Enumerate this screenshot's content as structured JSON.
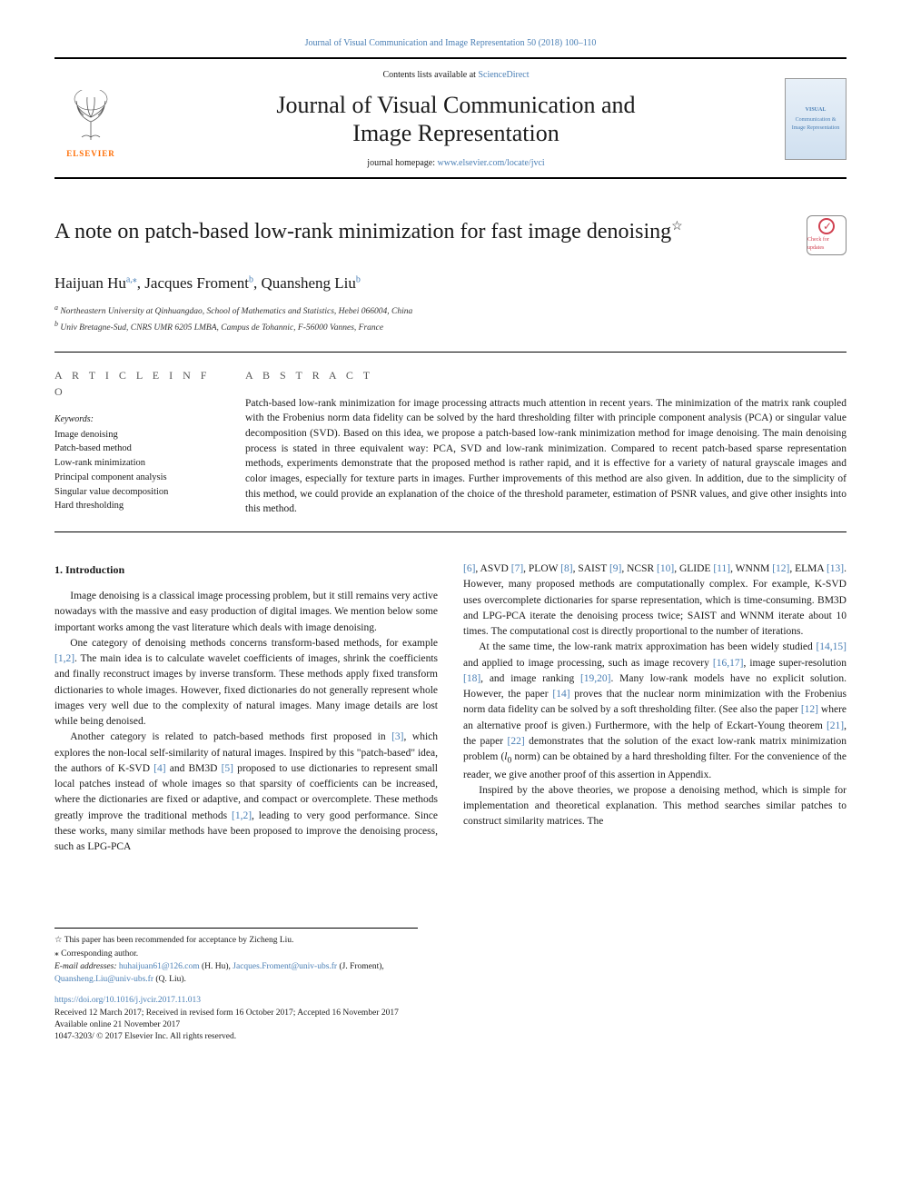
{
  "header": {
    "citation": "Journal of Visual Communication and Image Representation 50 (2018) 100–110",
    "contents_prefix": "Contents lists available at ",
    "contents_link": "ScienceDirect",
    "journal_name_1": "Journal of Visual Communication and",
    "journal_name_2": "Image Representation",
    "homepage_prefix": "journal homepage: ",
    "homepage_link": "www.elsevier.com/locate/jvci",
    "elsevier_label": "ELSEVIER",
    "cover_title": "VISUAL",
    "cover_sub": "Communication & Image Representation",
    "updates_label": "Check for updates"
  },
  "paper": {
    "title": "A note on patch-based low-rank minimization for fast image denoising",
    "title_mark": "☆",
    "authors_html": "Haijuan Hu|a,*|, Jacques Froment|b|, Quansheng Liu|b|",
    "authors": [
      {
        "name": "Haijuan Hu",
        "sup": "a,",
        "mark": "⁎"
      },
      {
        "name": "Jacques Froment",
        "sup": "b"
      },
      {
        "name": "Quansheng Liu",
        "sup": "b"
      }
    ],
    "affiliations": [
      {
        "sup": "a",
        "text": "Northeastern University at Qinhuangdao, School of Mathematics and Statistics, Hebei 066004, China"
      },
      {
        "sup": "b",
        "text": "Univ Bretagne-Sud, CNRS UMR 6205 LMBA, Campus de Tohannic, F-56000 Vannes, France"
      }
    ]
  },
  "info": {
    "header": "A R T I C L E   I N F O",
    "keywords_label": "Keywords:",
    "keywords": [
      "Image denoising",
      "Patch-based method",
      "Low-rank minimization",
      "Principal component analysis",
      "Singular value decomposition",
      "Hard thresholding"
    ]
  },
  "abstract": {
    "header": "A B S T R A C T",
    "text": "Patch-based low-rank minimization for image processing attracts much attention in recent years. The minimization of the matrix rank coupled with the Frobenius norm data fidelity can be solved by the hard thresholding filter with principle component analysis (PCA) or singular value decomposition (SVD). Based on this idea, we propose a patch-based low-rank minimization method for image denoising. The main denoising process is stated in three equivalent way: PCA, SVD and low-rank minimization. Compared to recent patch-based sparse representation methods, experiments demonstrate that the proposed method is rather rapid, and it is effective for a variety of natural grayscale images and color images, especially for texture parts in images. Further improvements of this method are also given. In addition, due to the simplicity of this method, we could provide an explanation of the choice of the threshold parameter, estimation of PSNR values, and give other insights into this method."
  },
  "body": {
    "section_number": "1.",
    "section_title": "Introduction",
    "left_paragraphs": [
      "Image denoising is a classical image processing problem, but it still remains very active nowadays with the massive and easy production of digital images. We mention below some important works among the vast literature which deals with image denoising.",
      "One category of denoising methods concerns transform-based methods, for example <span class='ref'>[1,2]</span>. The main idea is to calculate wavelet coefficients of images, shrink the coefficients and finally reconstruct images by inverse transform. These methods apply fixed transform dictionaries to whole images. However, fixed dictionaries do not generally represent whole images very well due to the complexity of natural images. Many image details are lost while being denoised.",
      "Another category is related to patch-based methods first proposed in <span class='ref'>[3]</span>, which explores the non-local self-similarity of natural images. Inspired by this \"patch-based\" idea, the authors of K-SVD <span class='ref'>[4]</span> and BM3D <span class='ref'>[5]</span> proposed to use dictionaries to represent small local patches instead of whole images so that sparsity of coefficients can be increased, where the dictionaries are fixed or adaptive, and compact or overcomplete. These methods greatly improve the traditional methods <span class='ref'>[1,2]</span>, leading to very good performance. Since these works, many similar methods have been proposed to improve the denoising process, such as LPG-PCA"
    ],
    "right_paragraphs": [
      "<span class='ref'>[6]</span>, ASVD <span class='ref'>[7]</span>, PLOW <span class='ref'>[8]</span>, SAIST <span class='ref'>[9]</span>, NCSR <span class='ref'>[10]</span>, GLIDE <span class='ref'>[11]</span>, WNNM <span class='ref'>[12]</span>, ELMA <span class='ref'>[13]</span>. However, many proposed methods are computationally complex. For example, K-SVD uses overcomplete dictionaries for sparse representation, which is time-consuming. BM3D and LPG-PCA iterate the denoising process twice; SAIST and WNNM iterate about 10 times. The computational cost is directly proportional to the number of iterations.",
      "At the same time, the low-rank matrix approximation has been widely studied <span class='ref'>[14,15]</span> and applied to image processing, such as image recovery <span class='ref'>[16,17]</span>, image super-resolution <span class='ref'>[18]</span>, and image ranking <span class='ref'>[19,20]</span>. Many low-rank models have no explicit solution. However, the paper <span class='ref'>[14]</span> proves that the nuclear norm minimization with the Frobenius norm data fidelity can be solved by a soft thresholding filter. (See also the paper <span class='ref'>[12]</span> where an alternative proof is given.) Furthermore, with the help of Eckart-Young theorem <span class='ref'>[21]</span>, the paper <span class='ref'>[22]</span> demonstrates that the solution of the exact low-rank matrix minimization problem (<span class='subscript-math'>l</span><sub>0</sub> norm) can be obtained by a hard thresholding filter. For the convenience of the reader, we give another proof of this assertion in Appendix.",
      "Inspired by the above theories, we propose a denoising method, which is simple for implementation and theoretical explanation. This method searches similar patches to construct similarity matrices. The"
    ]
  },
  "footnotes": {
    "star": "☆ This paper has been recommended for acceptance by Zicheng Liu.",
    "corr": "⁎ Corresponding author.",
    "emails_label": "E-mail addresses: ",
    "emails": [
      {
        "addr": "huhaijuan61@126.com",
        "who": " (H. Hu), "
      },
      {
        "addr": "Jacques.Froment@univ-ubs.fr",
        "who": " (J. Froment), "
      },
      {
        "addr": "Quansheng.Liu@univ-ubs.fr",
        "who": " (Q. Liu)."
      }
    ]
  },
  "pubinfo": {
    "doi": "https://doi.org/10.1016/j.jvcir.2017.11.013",
    "received": "Received 12 March 2017; Received in revised form 16 October 2017; Accepted 16 November 2017",
    "available": "Available online 21 November 2017",
    "copyright": "1047-3203/ © 2017 Elsevier Inc. All rights reserved."
  },
  "colors": {
    "link": "#4a7fb5",
    "elsevier_orange": "#ff6b00",
    "text": "#1a1a1a",
    "badge": "#d04050"
  }
}
